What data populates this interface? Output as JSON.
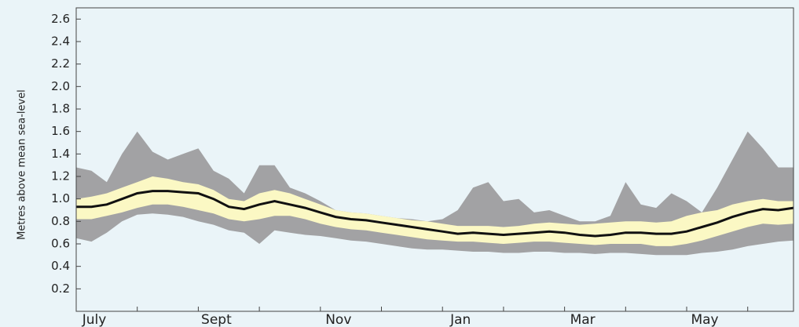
{
  "chart_data": {
    "type": "band-line",
    "y_label": "Metres above mean sea-level",
    "categories": [
      "July",
      null,
      null,
      null,
      null,
      null,
      null,
      null,
      "Sept",
      null,
      null,
      null,
      null,
      null,
      null,
      null,
      "Nov",
      null,
      null,
      null,
      null,
      null,
      null,
      null,
      "Jan",
      null,
      null,
      null,
      null,
      null,
      null,
      null,
      "Mar",
      null,
      null,
      null,
      null,
      null,
      null,
      null,
      "May",
      null,
      null,
      null,
      null,
      null,
      null,
      null
    ],
    "bands": [
      {
        "color": "#a2a2a4",
        "high": [
          1.28,
          1.25,
          1.15,
          1.4,
          1.6,
          1.42,
          1.35,
          1.4,
          1.45,
          1.25,
          1.18,
          1.05,
          1.3,
          1.3,
          1.1,
          1.05,
          0.98,
          0.9,
          0.88,
          0.87,
          0.85,
          0.83,
          0.82,
          0.8,
          0.82,
          0.9,
          1.1,
          1.15,
          0.98,
          1.0,
          0.88,
          0.9,
          0.85,
          0.8,
          0.8,
          0.85,
          1.15,
          0.95,
          0.92,
          1.05,
          0.98,
          0.88,
          1.1,
          1.35,
          1.6,
          1.45,
          1.28,
          1.28
        ],
        "low": [
          0.65,
          0.62,
          0.7,
          0.8,
          0.86,
          0.87,
          0.86,
          0.84,
          0.8,
          0.77,
          0.72,
          0.7,
          0.6,
          0.72,
          0.7,
          0.68,
          0.67,
          0.65,
          0.63,
          0.62,
          0.6,
          0.58,
          0.56,
          0.55,
          0.55,
          0.54,
          0.53,
          0.53,
          0.52,
          0.52,
          0.53,
          0.53,
          0.52,
          0.52,
          0.51,
          0.52,
          0.52,
          0.51,
          0.5,
          0.5,
          0.5,
          0.52,
          0.53,
          0.55,
          0.58,
          0.6,
          0.62,
          0.63
        ]
      },
      {
        "color": "#fbf8c4",
        "high": [
          1.0,
          1.02,
          1.05,
          1.1,
          1.15,
          1.2,
          1.18,
          1.15,
          1.13,
          1.08,
          1.0,
          0.98,
          1.05,
          1.08,
          1.05,
          1.0,
          0.95,
          0.9,
          0.88,
          0.87,
          0.85,
          0.83,
          0.81,
          0.8,
          0.78,
          0.76,
          0.76,
          0.76,
          0.75,
          0.76,
          0.78,
          0.79,
          0.78,
          0.77,
          0.78,
          0.79,
          0.8,
          0.8,
          0.79,
          0.8,
          0.85,
          0.88,
          0.9,
          0.95,
          0.98,
          1.0,
          0.98,
          0.98
        ],
        "low": [
          0.82,
          0.82,
          0.85,
          0.88,
          0.92,
          0.95,
          0.95,
          0.93,
          0.9,
          0.87,
          0.82,
          0.8,
          0.82,
          0.85,
          0.85,
          0.82,
          0.78,
          0.75,
          0.73,
          0.72,
          0.7,
          0.68,
          0.66,
          0.64,
          0.63,
          0.62,
          0.62,
          0.61,
          0.6,
          0.61,
          0.62,
          0.62,
          0.61,
          0.6,
          0.59,
          0.6,
          0.6,
          0.6,
          0.58,
          0.58,
          0.6,
          0.63,
          0.67,
          0.71,
          0.75,
          0.78,
          0.77,
          0.78
        ]
      }
    ],
    "series": [
      {
        "color": "#111111",
        "values": [
          0.93,
          0.93,
          0.95,
          1.0,
          1.05,
          1.07,
          1.07,
          1.06,
          1.05,
          1.0,
          0.93,
          0.91,
          0.95,
          0.98,
          0.95,
          0.92,
          0.88,
          0.84,
          0.82,
          0.81,
          0.79,
          0.77,
          0.75,
          0.73,
          0.71,
          0.69,
          0.7,
          0.69,
          0.68,
          0.69,
          0.7,
          0.71,
          0.7,
          0.68,
          0.67,
          0.68,
          0.7,
          0.7,
          0.69,
          0.69,
          0.71,
          0.75,
          0.79,
          0.84,
          0.88,
          0.91,
          0.9,
          0.92
        ]
      }
    ],
    "ylim": [
      0,
      2.7
    ],
    "yticks": [
      0.2,
      0.4,
      0.6,
      0.8,
      {
        "value": 1,
        "label": "1.0"
      },
      1.2,
      1.4,
      1.6,
      1.8,
      {
        "value": 2,
        "label": "2.0"
      },
      2.2,
      2.4,
      2.6
    ]
  }
}
